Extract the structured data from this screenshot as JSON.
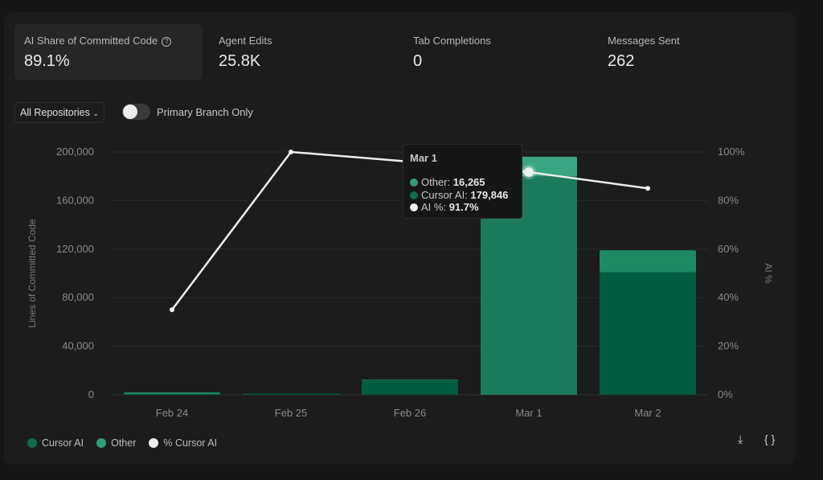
{
  "stats": [
    {
      "label": "AI Share of Committed Code",
      "value": "89.1%",
      "help_icon": "question-circle-icon"
    },
    {
      "label": "Agent Edits",
      "value": "25.8K"
    },
    {
      "label": "Tab Completions",
      "value": "0"
    },
    {
      "label": "Messages Sent",
      "value": "262"
    }
  ],
  "filters": {
    "repository": "All Repositories",
    "toggle_label": "Primary Branch Only",
    "toggle_on": false
  },
  "colors": {
    "cursor_ai": "#005c40",
    "other": "#1d7a5c",
    "other_top": "#2f9e78",
    "line": "#eeeeee"
  },
  "tooltip": {
    "title": "Mar 1",
    "other_label": "Other:",
    "other_value": "16,265",
    "cursor_label": "Cursor AI:",
    "cursor_value": "179,846",
    "ai_label": "AI %:",
    "ai_value": "91.7%"
  },
  "legend": [
    "Cursor AI",
    "Other",
    "% Cursor AI"
  ],
  "actions": {
    "download": "download-icon",
    "json": "code-braces-icon",
    "json_label": "{ }"
  },
  "chart_data": {
    "type": "bar",
    "stacked": true,
    "categories": [
      "Feb 24",
      "Feb 25",
      "Feb 26",
      "Mar 1",
      "Mar 2"
    ],
    "series": [
      {
        "name": "Cursor AI",
        "values": [
          700,
          900,
          12000,
          179846,
          101000
        ]
      },
      {
        "name": "Other",
        "values": [
          1300,
          0,
          500,
          16265,
          18000
        ]
      },
      {
        "name": "% Cursor AI",
        "type": "line",
        "axis": "right",
        "values": [
          35,
          100,
          96,
          91.7,
          85
        ]
      }
    ],
    "ylabel": "Lines of Committed Code",
    "ylabel_right": "AI %",
    "ylim": [
      0,
      200000
    ],
    "ylim_right": [
      0,
      100
    ],
    "yticks": [
      "0",
      "40,000",
      "80,000",
      "120,000",
      "160,000",
      "200,000"
    ],
    "yticks_right": [
      "0%",
      "20%",
      "40%",
      "60%",
      "80%",
      "100%"
    ],
    "grid": true,
    "legend": "bottom-left"
  }
}
